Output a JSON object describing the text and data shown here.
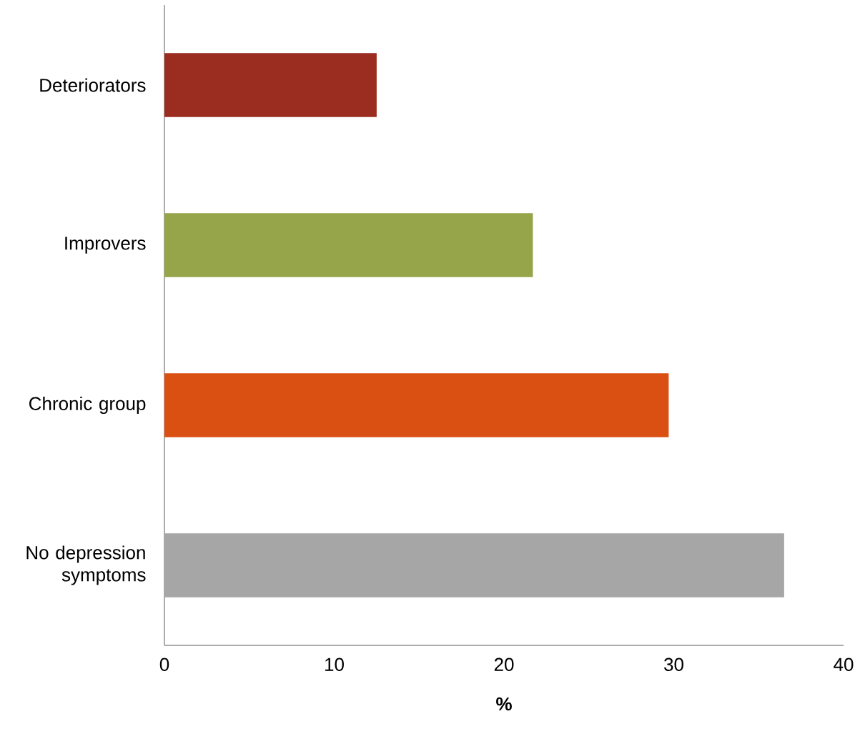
{
  "chart_data": {
    "type": "bar",
    "orientation": "horizontal",
    "xlabel": "%",
    "categories": [
      "Deteriorators",
      "Improvers",
      "Chronic group",
      "No depression symptoms"
    ],
    "values": [
      12.5,
      21.7,
      29.7,
      36.5
    ],
    "colors": [
      "#9b2d20",
      "#97a54a",
      "#da5013",
      "#a6a6a6"
    ],
    "xlim": [
      0,
      40
    ],
    "xticks": [
      0,
      10,
      20,
      30,
      40
    ],
    "grid": false
  }
}
